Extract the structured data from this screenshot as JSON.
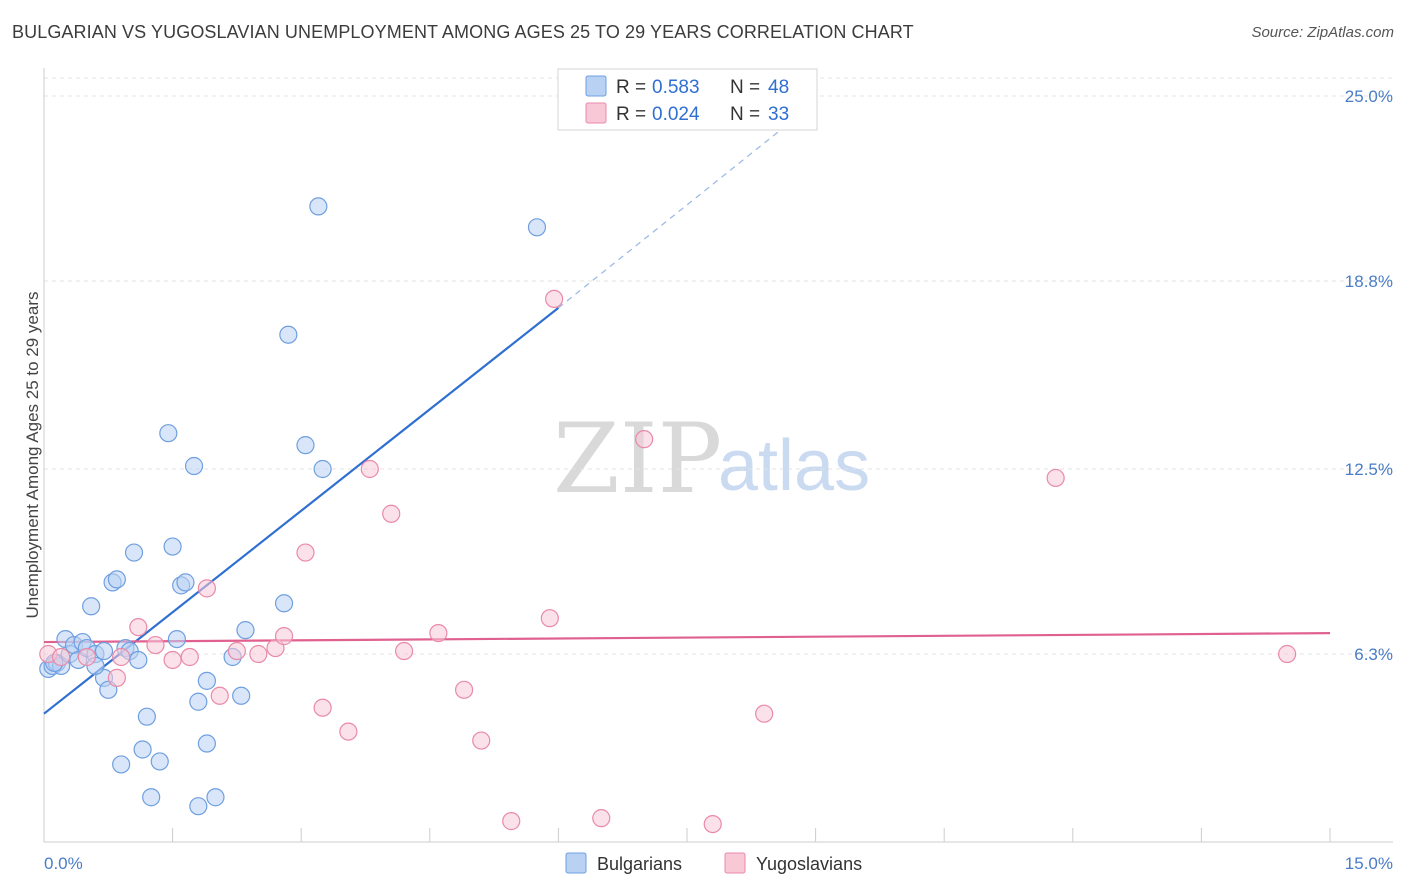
{
  "title": "BULGARIAN VS YUGOSLAVIAN UNEMPLOYMENT AMONG AGES 25 TO 29 YEARS CORRELATION CHART",
  "source": "Source: ZipAtlas.com",
  "watermark": {
    "zip": "ZIP",
    "atlas": "atlas"
  },
  "chart_data": {
    "type": "scatter",
    "title": "BULGARIAN VS YUGOSLAVIAN UNEMPLOYMENT AMONG AGES 25 TO 29 YEARS CORRELATION CHART",
    "xlabel": "",
    "ylabel": "Unemployment Among Ages 25 to 29 years",
    "xlim": [
      0,
      15
    ],
    "ylim": [
      0,
      25.7
    ],
    "x_tick_labels": [
      "0.0%",
      "15.0%"
    ],
    "y_ticks": [
      6.3,
      12.5,
      18.8,
      25.0
    ],
    "y_tick_labels": [
      "6.3%",
      "12.5%",
      "18.8%",
      "25.0%"
    ],
    "legend": [
      {
        "r_label": "R =",
        "r_value": "0.583",
        "n_label": "N =",
        "n_value": "48"
      },
      {
        "r_label": "R =",
        "r_value": "0.024",
        "n_label": "N =",
        "n_value": "33"
      }
    ],
    "series": [
      {
        "name": "Bulgarians",
        "color": "#6f9fe0",
        "fill": "#b9d2f4",
        "line_color": "#2f6fd1",
        "trend": {
          "x0": 0.0,
          "y0": 4.3,
          "x1": 6.0,
          "y1": 17.9,
          "dash_to_x": 9.0,
          "dash_to_y": 24.8
        },
        "points": [
          [
            0.05,
            5.8
          ],
          [
            0.1,
            5.9
          ],
          [
            0.15,
            6.0
          ],
          [
            0.2,
            5.9
          ],
          [
            0.25,
            6.8
          ],
          [
            0.3,
            6.3
          ],
          [
            0.35,
            6.6
          ],
          [
            0.4,
            6.1
          ],
          [
            0.45,
            6.7
          ],
          [
            0.5,
            6.5
          ],
          [
            0.55,
            7.9
          ],
          [
            0.6,
            6.3
          ],
          [
            0.7,
            6.4
          ],
          [
            0.7,
            5.5
          ],
          [
            0.75,
            5.1
          ],
          [
            0.8,
            8.7
          ],
          [
            0.85,
            8.8
          ],
          [
            0.9,
            2.6
          ],
          [
            0.95,
            6.5
          ],
          [
            1.0,
            6.4
          ],
          [
            1.05,
            9.7
          ],
          [
            1.1,
            6.1
          ],
          [
            1.15,
            3.1
          ],
          [
            1.2,
            4.2
          ],
          [
            1.25,
            1.5
          ],
          [
            1.35,
            2.7
          ],
          [
            1.45,
            13.7
          ],
          [
            1.5,
            9.9
          ],
          [
            1.55,
            6.8
          ],
          [
            1.6,
            8.6
          ],
          [
            1.65,
            8.7
          ],
          [
            1.75,
            12.6
          ],
          [
            1.8,
            4.7
          ],
          [
            1.8,
            1.2
          ],
          [
            1.9,
            3.3
          ],
          [
            1.9,
            5.4
          ],
          [
            2.0,
            1.5
          ],
          [
            2.2,
            6.2
          ],
          [
            2.3,
            4.9
          ],
          [
            2.35,
            7.1
          ],
          [
            2.8,
            8.0
          ],
          [
            2.85,
            17.0
          ],
          [
            3.05,
            13.3
          ],
          [
            3.2,
            21.3
          ],
          [
            3.25,
            12.5
          ],
          [
            5.75,
            20.6
          ],
          [
            0.12,
            6.0
          ],
          [
            0.6,
            5.9
          ]
        ]
      },
      {
        "name": "Yugoslavians",
        "color": "#e98aa8",
        "fill": "#f8c8d7",
        "line_color": "#e06090",
        "trend": {
          "x0": 0.0,
          "y0": 6.7,
          "x1": 15.0,
          "y1": 7.0
        },
        "points": [
          [
            0.05,
            6.3
          ],
          [
            0.2,
            6.2
          ],
          [
            0.5,
            6.2
          ],
          [
            0.85,
            5.5
          ],
          [
            0.9,
            6.2
          ],
          [
            1.1,
            7.2
          ],
          [
            1.3,
            6.6
          ],
          [
            1.5,
            6.1
          ],
          [
            1.7,
            6.2
          ],
          [
            1.9,
            8.5
          ],
          [
            2.05,
            4.9
          ],
          [
            2.25,
            6.4
          ],
          [
            2.5,
            6.3
          ],
          [
            2.7,
            6.5
          ],
          [
            2.8,
            6.9
          ],
          [
            3.05,
            9.7
          ],
          [
            3.25,
            4.5
          ],
          [
            3.55,
            3.7
          ],
          [
            3.8,
            12.5
          ],
          [
            4.05,
            11.0
          ],
          [
            4.2,
            6.4
          ],
          [
            4.6,
            7.0
          ],
          [
            4.9,
            5.1
          ],
          [
            5.1,
            3.4
          ],
          [
            5.45,
            0.7
          ],
          [
            5.9,
            7.5
          ],
          [
            5.95,
            18.2
          ],
          [
            6.5,
            0.8
          ],
          [
            7.0,
            13.5
          ],
          [
            7.8,
            0.6
          ],
          [
            8.4,
            4.3
          ],
          [
            11.8,
            12.2
          ],
          [
            14.5,
            6.3
          ]
        ]
      }
    ]
  }
}
